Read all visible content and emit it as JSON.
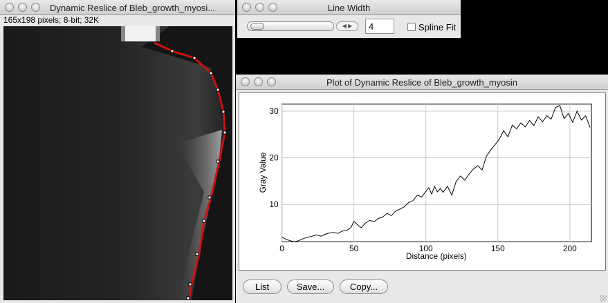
{
  "image_window": {
    "title": "Dynamic Reslice of Bleb_growth_myosi...",
    "info": "165x198 pixels; 8-bit; 32K"
  },
  "line_width_window": {
    "title": "Line Width",
    "value": "4",
    "spline_fit_label": "Spline Fit",
    "spline_fit_checked": false
  },
  "plot_window": {
    "title": "Plot of Dynamic Reslice of Bleb_growth_myosin",
    "buttons": {
      "list": "List",
      "save": "Save...",
      "copy": "Copy..."
    }
  },
  "chart_data": {
    "type": "line",
    "xlabel": "Distance (pixels)",
    "ylabel": "Gray Value",
    "xlim": [
      0,
      215
    ],
    "ylim": [
      2,
      31.5
    ],
    "xticks": [
      "0",
      "50",
      "100",
      "150",
      "200"
    ],
    "yticks": [
      "10",
      "20",
      "30"
    ],
    "grid": true,
    "series": [
      {
        "color": "#000000",
        "x": [
          0,
          3,
          6,
          9,
          12,
          15,
          18,
          21,
          24,
          27,
          30,
          33,
          36,
          39,
          42,
          45,
          48,
          50,
          52,
          55,
          58,
          61,
          64,
          67,
          70,
          73,
          76,
          79,
          82,
          85,
          88,
          91,
          94,
          97,
          100,
          102,
          104,
          106,
          108,
          110,
          112,
          115,
          118,
          121,
          124,
          127,
          130,
          133,
          136,
          139,
          142,
          145,
          148,
          151,
          154,
          157,
          160,
          163,
          166,
          169,
          172,
          175,
          178,
          181,
          184,
          187,
          190,
          193,
          196,
          199,
          202,
          205,
          208,
          211,
          214
        ],
        "y": [
          3,
          2.5,
          2.2,
          2.0,
          2.3,
          2.7,
          3.0,
          3.2,
          3.5,
          3.2,
          3.6,
          3.9,
          4.0,
          3.8,
          4.3,
          4.4,
          5.1,
          6.4,
          5.8,
          5.0,
          6.0,
          6.6,
          6.3,
          7.0,
          7.3,
          8.1,
          7.6,
          8.6,
          9.0,
          9.5,
          10.4,
          10.8,
          12.0,
          11.6,
          12.8,
          13.6,
          12.2,
          13.9,
          12.7,
          13.4,
          12.6,
          13.9,
          12.0,
          14.9,
          16.1,
          15.2,
          16.5,
          17.6,
          18.3,
          17.4,
          20.3,
          21.7,
          22.8,
          24.0,
          25.8,
          24.5,
          27.0,
          26.2,
          27.5,
          26.6,
          28.0,
          26.9,
          28.8,
          27.7,
          29.0,
          28.3,
          30.8,
          31.2,
          28.4,
          29.5,
          27.6,
          30.0,
          28.1,
          29.0,
          26.5
        ]
      }
    ]
  }
}
